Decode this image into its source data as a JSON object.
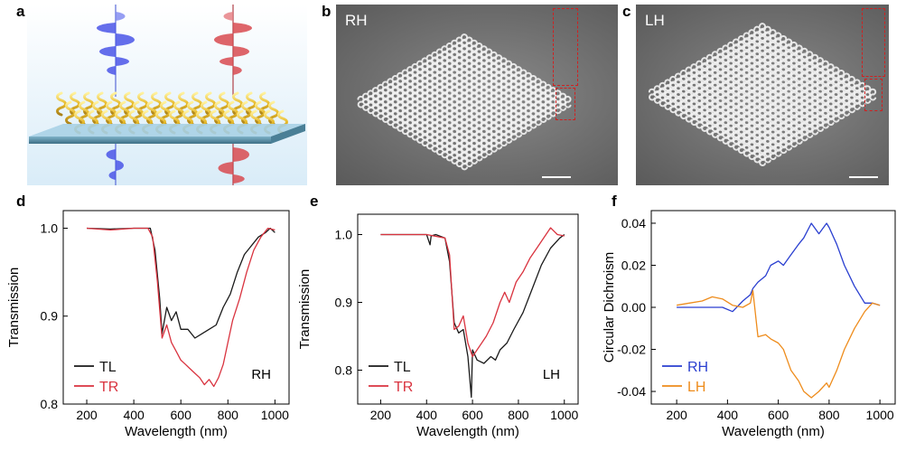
{
  "panels": {
    "a": {
      "letter": "a"
    },
    "b": {
      "letter": "b",
      "label": "RH"
    },
    "c": {
      "letter": "c",
      "label": "LH"
    },
    "d": {
      "letter": "d"
    },
    "e": {
      "letter": "e"
    },
    "f": {
      "letter": "f"
    }
  },
  "colors": {
    "TL": "#1a1a1a",
    "TR": "#d9333f",
    "RH": "#2a3fd0",
    "LH": "#ee8c1c",
    "wave_blue": "#4a55e8",
    "wave_red": "#d84a50",
    "helix_gold": "#e8c030"
  },
  "chart_data": [
    {
      "id": "d",
      "type": "line",
      "xlabel": "Wavelength (nm)",
      "ylabel": "Transmission",
      "xlim": [
        100,
        1060
      ],
      "ylim": [
        0.8,
        1.02
      ],
      "xticks": [
        200,
        400,
        600,
        800,
        1000
      ],
      "yticks": [
        0.8,
        0.9,
        1.0
      ],
      "ytick_labels": [
        "0.8",
        "0.9",
        "1.0"
      ],
      "annotation": "RH",
      "legend": "bottom-left",
      "series": [
        {
          "name": "TL",
          "color_key": "TL",
          "x": [
            200,
            300,
            400,
            470,
            490,
            510,
            520,
            540,
            560,
            580,
            600,
            630,
            660,
            690,
            720,
            750,
            780,
            810,
            840,
            870,
            900,
            930,
            960,
            980,
            1000
          ],
          "y": [
            1.0,
            0.999,
            1.0,
            1.0,
            0.975,
            0.92,
            0.88,
            0.91,
            0.895,
            0.905,
            0.885,
            0.885,
            0.875,
            0.88,
            0.885,
            0.89,
            0.91,
            0.925,
            0.95,
            0.97,
            0.98,
            0.99,
            0.995,
            1.0,
            0.995
          ]
        },
        {
          "name": "TR",
          "color_key": "TR",
          "x": [
            200,
            300,
            400,
            460,
            480,
            500,
            520,
            540,
            560,
            580,
            600,
            620,
            640,
            660,
            680,
            700,
            720,
            740,
            760,
            780,
            800,
            820,
            850,
            880,
            910,
            940,
            970,
            1000
          ],
          "y": [
            1.0,
            0.998,
            1.0,
            1.0,
            0.99,
            0.94,
            0.875,
            0.89,
            0.87,
            0.86,
            0.85,
            0.845,
            0.84,
            0.835,
            0.83,
            0.822,
            0.828,
            0.82,
            0.83,
            0.845,
            0.87,
            0.895,
            0.92,
            0.95,
            0.975,
            0.99,
            1.0,
            0.998
          ]
        }
      ]
    },
    {
      "id": "e",
      "type": "line",
      "xlabel": "Wavelength (nm)",
      "ylabel": "Transmission",
      "xlim": [
        100,
        1060
      ],
      "ylim": [
        0.75,
        1.03
      ],
      "xticks": [
        200,
        400,
        600,
        800,
        1000
      ],
      "yticks": [
        0.8,
        0.9,
        1.0
      ],
      "ytick_labels": [
        "0.8",
        "0.9",
        "1.0"
      ],
      "annotation": "LH",
      "legend": "bottom-left",
      "series": [
        {
          "name": "TL",
          "color_key": "TL",
          "x": [
            200,
            300,
            400,
            415,
            420,
            440,
            480,
            500,
            520,
            540,
            560,
            580,
            595,
            600,
            620,
            650,
            680,
            700,
            720,
            750,
            780,
            820,
            860,
            900,
            940,
            980,
            1000
          ],
          "y": [
            1.0,
            1.0,
            1.0,
            0.985,
            0.998,
            1.0,
            0.995,
            0.96,
            0.87,
            0.855,
            0.86,
            0.82,
            0.76,
            0.83,
            0.815,
            0.81,
            0.82,
            0.815,
            0.83,
            0.84,
            0.86,
            0.885,
            0.92,
            0.955,
            0.98,
            0.995,
            1.0
          ]
        },
        {
          "name": "TR",
          "color_key": "TR",
          "x": [
            200,
            300,
            400,
            480,
            500,
            520,
            540,
            560,
            580,
            600,
            630,
            660,
            690,
            720,
            740,
            760,
            790,
            820,
            850,
            880,
            910,
            940,
            970,
            1000
          ],
          "y": [
            1.0,
            1.0,
            1.0,
            0.995,
            0.97,
            0.86,
            0.865,
            0.88,
            0.84,
            0.82,
            0.835,
            0.85,
            0.87,
            0.9,
            0.915,
            0.9,
            0.93,
            0.945,
            0.965,
            0.98,
            0.995,
            1.01,
            1.0,
            0.998
          ]
        }
      ]
    },
    {
      "id": "f",
      "type": "line",
      "xlabel": "Wavelength (nm)",
      "ylabel": "Circular Dichroism",
      "xlim": [
        100,
        1060
      ],
      "ylim": [
        -0.046,
        0.046
      ],
      "xticks": [
        200,
        400,
        600,
        800,
        1000
      ],
      "yticks": [
        -0.04,
        -0.02,
        0.0,
        0.02,
        0.04
      ],
      "ytick_labels": [
        "-0.04",
        "-0.02",
        "0.00",
        "0.02",
        "0.04"
      ],
      "legend": "bottom-left",
      "series": [
        {
          "name": "RH",
          "color_key": "RH",
          "x": [
            200,
            250,
            300,
            340,
            380,
            420,
            460,
            490,
            500,
            520,
            550,
            570,
            600,
            620,
            650,
            680,
            700,
            730,
            760,
            790,
            800,
            830,
            860,
            900,
            940,
            970,
            1000
          ],
          "y": [
            0.0,
            0.0,
            0.0,
            0.0,
            0.0,
            -0.002,
            0.003,
            0.006,
            0.009,
            0.012,
            0.015,
            0.02,
            0.022,
            0.02,
            0.025,
            0.03,
            0.033,
            0.04,
            0.035,
            0.04,
            0.038,
            0.03,
            0.02,
            0.01,
            0.002,
            0.002,
            0.001
          ]
        },
        {
          "name": "LH",
          "color_key": "LH",
          "x": [
            200,
            250,
            300,
            340,
            380,
            420,
            460,
            490,
            500,
            520,
            550,
            570,
            600,
            620,
            650,
            680,
            700,
            730,
            760,
            790,
            800,
            830,
            860,
            900,
            940,
            970,
            1000
          ],
          "y": [
            0.001,
            0.002,
            0.003,
            0.005,
            0.004,
            0.001,
            0.0,
            0.002,
            0.008,
            -0.014,
            -0.013,
            -0.015,
            -0.017,
            -0.02,
            -0.03,
            -0.035,
            -0.04,
            -0.043,
            -0.04,
            -0.036,
            -0.038,
            -0.03,
            -0.02,
            -0.01,
            -0.002,
            0.002,
            0.001
          ]
        }
      ]
    }
  ]
}
